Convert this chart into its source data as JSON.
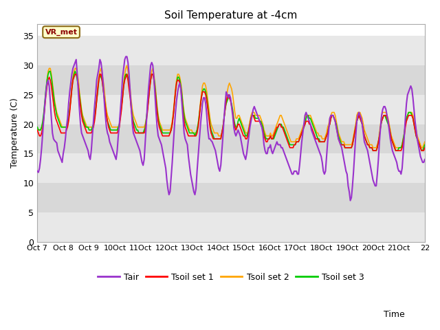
{
  "title": "Soil Temperature at -4cm",
  "xlabel": "Time",
  "ylabel": "Temperature (C)",
  "ylim": [
    0,
    37
  ],
  "yticks": [
    0,
    5,
    10,
    15,
    20,
    25,
    30,
    35
  ],
  "fig_bg_color": "#ffffff",
  "plot_bg_color": "#ffffff",
  "band_colors": [
    "#e8e8e8",
    "#d8d8d8"
  ],
  "grid_color": "#cccccc",
  "annotation_text": "VR_met",
  "annotation_bg": "#ffffcc",
  "annotation_border": "#8B6914",
  "legend_labels": [
    "Tair",
    "Tsoil set 1",
    "Tsoil set 2",
    "Tsoil set 3"
  ],
  "line_colors": [
    "#9932CC",
    "#ff0000",
    "#ffa500",
    "#00cc00"
  ],
  "xtick_labels": [
    "Oct 7",
    "Oct 8",
    "Oct 9",
    "Oct 10",
    "Oct 11",
    "Oct 12",
    "Oct 13",
    "Oct 14",
    "Oct 15",
    "Oct 16",
    "Oct 17",
    "Oct 18",
    "Oct 19",
    "Oct 20",
    "Oct 21",
    "Oct 22"
  ],
  "xtick_labels_display": [
    "Oct 7",
    "Oct 8",
    "Oct 9",
    "10Oct",
    "11Oct",
    "12Oct",
    "13Oct",
    "14Oct",
    "15Oct",
    "16Oct",
    "17Oct",
    "18Oct",
    "19Oct",
    "20Oct",
    "21Oct",
    "22"
  ],
  "n_days": 15,
  "points_per_day": 24,
  "tair": [
    12.0,
    11.8,
    12.5,
    14.0,
    16.0,
    18.5,
    21.0,
    23.5,
    25.5,
    27.0,
    27.5,
    26.5,
    24.0,
    21.0,
    18.5,
    17.5,
    17.2,
    17.0,
    16.8,
    15.5,
    15.0,
    14.5,
    14.0,
    13.5,
    15.0,
    16.0,
    17.5,
    19.5,
    21.0,
    23.5,
    25.5,
    27.0,
    28.5,
    29.5,
    30.0,
    30.5,
    31.0,
    28.5,
    25.5,
    22.5,
    20.0,
    18.5,
    18.0,
    17.5,
    17.0,
    16.5,
    16.0,
    15.5,
    14.5,
    14.0,
    15.5,
    18.0,
    20.5,
    23.0,
    25.0,
    27.5,
    28.5,
    29.5,
    31.0,
    30.5,
    29.0,
    27.0,
    24.0,
    21.5,
    19.5,
    18.5,
    18.0,
    17.0,
    16.5,
    16.0,
    15.5,
    15.0,
    14.5,
    14.0,
    15.5,
    18.0,
    20.0,
    22.5,
    25.0,
    28.0,
    29.5,
    31.0,
    31.5,
    31.5,
    30.5,
    28.5,
    25.5,
    23.0,
    20.0,
    18.5,
    18.0,
    17.5,
    17.0,
    16.5,
    16.0,
    15.5,
    14.5,
    13.5,
    13.0,
    14.0,
    17.0,
    20.0,
    23.5,
    26.0,
    28.0,
    30.0,
    30.5,
    30.0,
    28.0,
    25.0,
    22.0,
    19.5,
    18.0,
    17.5,
    17.0,
    16.5,
    15.5,
    14.5,
    13.5,
    12.5,
    10.5,
    9.0,
    8.0,
    8.5,
    11.0,
    13.5,
    16.5,
    19.5,
    22.0,
    24.0,
    25.5,
    26.5,
    27.0,
    26.0,
    23.5,
    21.0,
    18.5,
    17.5,
    17.0,
    16.5,
    14.5,
    13.0,
    11.5,
    10.5,
    9.5,
    8.5,
    8.0,
    9.0,
    12.0,
    14.5,
    17.0,
    19.5,
    21.5,
    23.5,
    24.5,
    24.5,
    23.5,
    21.5,
    19.0,
    17.5,
    17.5,
    17.2,
    17.0,
    16.5,
    16.0,
    15.5,
    14.5,
    13.5,
    12.5,
    12.0,
    13.0,
    15.5,
    18.0,
    21.0,
    23.5,
    25.5,
    25.0,
    24.5,
    25.0,
    24.5,
    23.0,
    21.5,
    19.5,
    18.5,
    18.0,
    18.5,
    19.0,
    18.5,
    18.0,
    17.0,
    16.0,
    15.0,
    14.5,
    14.0,
    15.0,
    16.5,
    18.0,
    19.5,
    20.5,
    21.5,
    22.5,
    23.0,
    22.5,
    22.0,
    21.5,
    21.0,
    20.5,
    20.0,
    19.5,
    18.5,
    16.5,
    15.5,
    15.0,
    15.0,
    16.0,
    16.0,
    16.5,
    15.5,
    15.0,
    15.5,
    16.0,
    16.5,
    17.0,
    16.5,
    16.5,
    16.5,
    16.0,
    16.0,
    15.5,
    15.0,
    14.5,
    14.0,
    13.5,
    13.0,
    12.5,
    12.0,
    11.5,
    11.5,
    12.0,
    12.0,
    12.0,
    11.5,
    11.5,
    13.0,
    15.0,
    17.0,
    18.5,
    20.0,
    21.5,
    22.0,
    21.5,
    21.0,
    20.5,
    20.0,
    19.0,
    18.5,
    18.0,
    17.5,
    17.0,
    16.5,
    16.0,
    15.5,
    15.0,
    14.5,
    13.5,
    12.0,
    11.5,
    12.0,
    14.5,
    17.0,
    19.0,
    21.0,
    21.5,
    21.5,
    21.5,
    21.0,
    20.5,
    19.5,
    18.5,
    17.5,
    17.0,
    16.5,
    16.0,
    15.0,
    14.0,
    13.0,
    12.0,
    11.5,
    9.5,
    8.5,
    7.0,
    7.5,
    9.5,
    12.0,
    15.0,
    18.0,
    20.5,
    21.5,
    22.0,
    21.5,
    21.0,
    20.0,
    18.5,
    17.0,
    16.5,
    16.0,
    15.5,
    14.5,
    13.5,
    12.5,
    11.5,
    10.5,
    10.0,
    9.5,
    9.5,
    11.5,
    14.0,
    17.0,
    19.5,
    21.5,
    22.5,
    23.0,
    23.0,
    22.5,
    21.5,
    20.5,
    19.0,
    17.5,
    16.5,
    15.5,
    15.0,
    14.5,
    14.0,
    13.5,
    12.5,
    12.0,
    12.0,
    11.5,
    12.5,
    15.0,
    18.0,
    21.0,
    23.5,
    25.0,
    25.5,
    26.0,
    26.5,
    26.0,
    24.5,
    22.5,
    20.5,
    19.0,
    17.5,
    16.5,
    15.5,
    14.5,
    14.0,
    13.5,
    13.5,
    14.0
  ],
  "tsoil1": [
    19.0,
    18.5,
    18.0,
    18.0,
    18.5,
    19.5,
    21.0,
    23.0,
    25.0,
    26.5,
    27.5,
    28.0,
    27.5,
    26.5,
    25.0,
    23.5,
    22.0,
    21.0,
    20.5,
    20.0,
    19.5,
    19.0,
    18.5,
    18.5,
    18.5,
    18.5,
    18.5,
    19.0,
    19.5,
    20.5,
    22.0,
    24.0,
    26.0,
    27.5,
    28.0,
    28.5,
    28.5,
    28.0,
    26.5,
    24.5,
    23.0,
    21.5,
    20.5,
    20.0,
    19.5,
    19.0,
    18.5,
    18.5,
    18.5,
    18.5,
    18.5,
    19.0,
    19.5,
    20.5,
    22.0,
    24.0,
    26.0,
    27.5,
    28.5,
    28.5,
    27.5,
    26.0,
    24.5,
    23.0,
    21.5,
    20.5,
    19.5,
    19.0,
    18.5,
    18.5,
    18.5,
    18.5,
    18.5,
    18.5,
    18.5,
    19.0,
    19.5,
    21.0,
    22.5,
    24.5,
    26.5,
    27.5,
    28.0,
    28.5,
    27.5,
    26.0,
    24.5,
    22.5,
    21.0,
    20.0,
    19.0,
    18.5,
    18.5,
    18.5,
    18.5,
    18.5,
    18.5,
    18.5,
    18.5,
    18.5,
    19.0,
    20.5,
    22.0,
    24.0,
    26.0,
    27.5,
    28.5,
    28.5,
    27.5,
    26.0,
    24.0,
    22.0,
    20.5,
    19.5,
    19.0,
    18.5,
    18.0,
    18.0,
    18.0,
    18.0,
    18.0,
    18.0,
    18.0,
    18.5,
    19.0,
    20.0,
    21.5,
    23.5,
    25.5,
    27.0,
    27.5,
    27.5,
    27.0,
    26.0,
    24.0,
    22.0,
    20.5,
    19.5,
    19.0,
    18.5,
    18.0,
    18.0,
    18.0,
    18.0,
    18.0,
    18.0,
    18.0,
    18.0,
    18.5,
    19.5,
    21.0,
    23.0,
    24.5,
    25.5,
    25.5,
    25.5,
    25.0,
    24.0,
    22.5,
    21.0,
    19.5,
    18.5,
    18.0,
    17.5,
    17.5,
    17.5,
    17.5,
    17.5,
    17.5,
    17.5,
    17.5,
    18.5,
    19.5,
    21.0,
    22.5,
    24.0,
    24.5,
    25.0,
    24.5,
    24.0,
    23.0,
    22.0,
    20.5,
    19.5,
    19.0,
    19.5,
    20.0,
    20.0,
    19.5,
    19.0,
    18.5,
    18.0,
    18.0,
    17.5,
    17.5,
    18.0,
    19.0,
    20.0,
    21.0,
    21.5,
    21.5,
    21.0,
    20.5,
    20.5,
    20.5,
    20.5,
    20.5,
    20.0,
    19.5,
    19.0,
    18.0,
    17.5,
    17.0,
    17.0,
    17.5,
    17.5,
    18.0,
    17.5,
    17.5,
    18.0,
    18.5,
    19.0,
    19.5,
    19.5,
    20.0,
    20.0,
    19.5,
    19.5,
    19.0,
    18.5,
    18.0,
    17.5,
    17.0,
    16.5,
    16.0,
    16.0,
    16.0,
    16.0,
    16.5,
    16.5,
    17.0,
    17.0,
    17.0,
    17.5,
    18.0,
    18.5,
    19.0,
    19.5,
    20.0,
    20.5,
    20.5,
    20.5,
    20.0,
    20.0,
    19.5,
    19.0,
    18.5,
    18.0,
    17.5,
    17.5,
    17.5,
    17.0,
    17.0,
    17.0,
    17.0,
    17.0,
    17.0,
    17.5,
    18.0,
    18.5,
    19.5,
    20.0,
    21.0,
    21.5,
    21.5,
    21.0,
    20.5,
    19.5,
    18.5,
    17.5,
    17.0,
    16.5,
    16.5,
    16.5,
    16.5,
    16.0,
    16.0,
    16.0,
    16.0,
    16.0,
    16.0,
    16.0,
    16.5,
    17.5,
    18.5,
    19.5,
    20.5,
    21.0,
    21.5,
    21.0,
    20.5,
    20.0,
    19.0,
    18.0,
    17.5,
    17.0,
    16.5,
    16.5,
    16.0,
    16.0,
    16.0,
    15.5,
    15.5,
    15.5,
    15.5,
    16.0,
    17.0,
    18.0,
    19.5,
    20.5,
    21.0,
    21.5,
    21.5,
    21.5,
    21.0,
    20.5,
    19.5,
    18.5,
    17.5,
    17.0,
    16.5,
    16.0,
    15.5,
    15.5,
    15.5,
    15.5,
    15.5,
    15.5,
    16.0,
    17.0,
    18.0,
    19.5,
    20.5,
    21.0,
    21.5,
    21.5,
    21.5,
    21.5,
    21.0,
    20.0,
    19.0,
    18.0,
    17.5,
    17.0,
    16.5,
    16.0,
    15.5,
    15.5,
    15.5,
    16.0
  ],
  "tsoil2": [
    19.5,
    19.0,
    19.0,
    19.0,
    19.5,
    20.0,
    21.5,
    23.5,
    25.5,
    27.5,
    29.0,
    29.5,
    29.5,
    28.5,
    27.0,
    25.5,
    24.0,
    23.0,
    22.0,
    21.5,
    21.0,
    20.5,
    20.0,
    19.5,
    19.5,
    19.5,
    19.5,
    19.5,
    20.0,
    21.0,
    22.5,
    24.5,
    26.5,
    28.0,
    29.0,
    29.5,
    29.5,
    28.5,
    27.5,
    25.5,
    24.0,
    22.5,
    21.5,
    21.0,
    20.5,
    20.0,
    19.5,
    19.5,
    19.5,
    19.5,
    19.5,
    19.5,
    20.0,
    21.0,
    22.5,
    24.5,
    26.5,
    28.0,
    29.0,
    29.5,
    28.5,
    27.5,
    26.0,
    24.0,
    22.5,
    21.5,
    21.0,
    20.5,
    20.0,
    19.5,
    19.5,
    19.5,
    19.5,
    19.5,
    19.5,
    19.5,
    20.0,
    21.5,
    23.0,
    25.0,
    27.0,
    28.5,
    29.5,
    30.0,
    29.0,
    27.5,
    26.0,
    24.0,
    22.5,
    21.5,
    21.0,
    20.5,
    20.0,
    19.5,
    19.5,
    19.5,
    19.5,
    19.5,
    19.5,
    19.5,
    20.0,
    21.0,
    22.5,
    24.5,
    26.5,
    28.0,
    29.0,
    29.5,
    28.5,
    27.0,
    25.0,
    23.0,
    21.5,
    20.5,
    20.0,
    19.5,
    19.0,
    19.0,
    19.0,
    19.0,
    19.0,
    19.0,
    19.0,
    19.0,
    19.5,
    20.5,
    22.0,
    24.0,
    26.0,
    27.5,
    28.5,
    28.5,
    28.0,
    27.0,
    25.5,
    23.5,
    22.0,
    21.0,
    20.5,
    20.0,
    19.5,
    19.0,
    19.0,
    19.0,
    18.5,
    18.5,
    18.5,
    18.5,
    19.0,
    20.0,
    21.5,
    23.5,
    25.0,
    26.5,
    27.0,
    27.0,
    26.5,
    25.5,
    24.0,
    22.5,
    21.0,
    20.0,
    19.5,
    19.0,
    18.5,
    18.5,
    18.5,
    18.5,
    18.0,
    18.0,
    18.0,
    18.5,
    19.5,
    21.0,
    22.5,
    24.0,
    25.5,
    26.5,
    27.0,
    26.5,
    26.0,
    25.0,
    23.5,
    22.0,
    21.0,
    21.0,
    21.5,
    21.5,
    21.0,
    20.5,
    20.0,
    19.5,
    19.0,
    18.5,
    18.5,
    18.5,
    19.5,
    20.5,
    21.5,
    22.0,
    22.0,
    22.0,
    21.5,
    21.5,
    21.5,
    21.5,
    21.5,
    21.0,
    20.5,
    20.0,
    19.0,
    18.5,
    18.0,
    18.0,
    18.0,
    18.0,
    18.5,
    18.0,
    18.0,
    18.5,
    19.0,
    19.5,
    20.0,
    20.5,
    21.0,
    21.5,
    21.5,
    21.0,
    20.5,
    20.0,
    19.5,
    19.0,
    18.5,
    18.0,
    17.5,
    17.0,
    17.0,
    17.0,
    17.0,
    17.0,
    17.5,
    17.5,
    17.5,
    18.0,
    18.5,
    19.0,
    19.5,
    20.0,
    20.5,
    21.5,
    21.5,
    21.5,
    21.5,
    21.5,
    21.0,
    20.5,
    20.0,
    19.5,
    19.0,
    18.5,
    18.5,
    18.0,
    18.0,
    18.0,
    17.5,
    17.5,
    17.5,
    18.0,
    18.5,
    19.5,
    20.0,
    21.0,
    21.5,
    22.0,
    22.0,
    22.0,
    21.5,
    20.5,
    19.5,
    18.5,
    18.0,
    17.5,
    17.0,
    17.0,
    17.0,
    16.5,
    16.5,
    16.5,
    16.5,
    16.5,
    16.5,
    16.5,
    17.0,
    18.0,
    19.0,
    20.0,
    21.5,
    22.0,
    22.0,
    22.0,
    21.5,
    21.0,
    20.0,
    19.0,
    18.5,
    18.0,
    17.5,
    17.0,
    16.5,
    16.5,
    16.5,
    16.0,
    16.0,
    16.0,
    16.0,
    16.5,
    17.0,
    18.5,
    20.0,
    21.5,
    22.0,
    22.0,
    22.0,
    22.0,
    21.5,
    21.0,
    20.0,
    19.0,
    18.0,
    17.5,
    17.0,
    16.5,
    16.0,
    16.0,
    16.0,
    16.0,
    16.0,
    16.0,
    16.5,
    17.5,
    18.5,
    20.0,
    21.0,
    21.5,
    22.0,
    22.0,
    22.0,
    22.0,
    21.5,
    21.0,
    20.0,
    19.0,
    18.0,
    17.5,
    17.0,
    16.5,
    16.0,
    16.0,
    16.5,
    17.0
  ],
  "tsoil3": [
    19.5,
    19.0,
    19.0,
    19.0,
    19.5,
    20.5,
    22.0,
    24.0,
    26.0,
    27.5,
    28.5,
    29.0,
    29.0,
    28.0,
    26.5,
    25.0,
    23.5,
    22.5,
    21.5,
    21.0,
    20.5,
    20.0,
    19.5,
    19.5,
    19.5,
    19.5,
    19.5,
    19.5,
    20.0,
    21.0,
    22.5,
    24.0,
    26.0,
    27.5,
    28.5,
    29.0,
    28.5,
    27.5,
    26.5,
    25.0,
    23.5,
    22.0,
    21.0,
    20.5,
    20.0,
    19.5,
    19.5,
    19.5,
    19.0,
    19.0,
    19.0,
    19.5,
    20.0,
    21.0,
    22.5,
    24.0,
    25.5,
    27.5,
    28.5,
    28.0,
    27.5,
    26.0,
    24.5,
    23.0,
    21.5,
    20.5,
    20.0,
    19.5,
    19.0,
    19.0,
    19.0,
    19.0,
    19.0,
    19.0,
    19.0,
    19.5,
    20.0,
    21.5,
    23.0,
    24.5,
    26.5,
    28.0,
    28.5,
    28.5,
    28.0,
    26.5,
    25.0,
    23.0,
    21.5,
    20.5,
    20.0,
    19.5,
    19.0,
    19.0,
    18.5,
    18.5,
    18.5,
    18.5,
    18.5,
    19.0,
    19.5,
    21.0,
    22.5,
    24.0,
    26.0,
    27.5,
    28.5,
    28.5,
    28.0,
    26.5,
    24.5,
    22.5,
    21.0,
    20.0,
    19.5,
    19.0,
    18.5,
    18.5,
    18.5,
    18.5,
    18.5,
    18.5,
    18.5,
    18.5,
    19.0,
    20.0,
    21.5,
    23.5,
    25.5,
    27.0,
    28.0,
    28.0,
    27.5,
    26.5,
    25.0,
    23.0,
    21.5,
    20.5,
    20.0,
    19.5,
    19.0,
    18.5,
    18.5,
    18.5,
    18.5,
    18.5,
    18.0,
    18.5,
    19.0,
    20.0,
    21.5,
    23.0,
    24.5,
    25.5,
    26.0,
    26.0,
    25.5,
    24.5,
    23.0,
    21.5,
    20.0,
    19.0,
    18.5,
    18.0,
    17.5,
    17.5,
    17.5,
    17.5,
    17.5,
    17.5,
    17.5,
    18.5,
    19.5,
    21.0,
    22.5,
    23.5,
    24.0,
    24.5,
    24.5,
    24.0,
    23.5,
    22.5,
    21.0,
    20.0,
    19.5,
    19.5,
    20.5,
    21.0,
    20.5,
    20.0,
    19.5,
    19.0,
    18.5,
    18.0,
    18.0,
    18.5,
    19.0,
    20.0,
    21.0,
    21.5,
    21.5,
    21.5,
    21.0,
    21.0,
    21.0,
    21.0,
    20.5,
    20.5,
    20.0,
    19.5,
    18.5,
    18.0,
    17.5,
    17.5,
    17.5,
    17.5,
    18.0,
    17.5,
    17.5,
    17.5,
    18.0,
    18.5,
    19.0,
    19.5,
    20.0,
    20.0,
    20.0,
    19.5,
    19.5,
    19.0,
    18.5,
    18.0,
    17.5,
    17.0,
    16.5,
    16.5,
    16.5,
    16.5,
    16.5,
    16.5,
    17.0,
    17.0,
    17.0,
    17.5,
    18.0,
    18.5,
    19.0,
    19.5,
    20.0,
    21.0,
    21.5,
    21.5,
    21.0,
    21.0,
    20.5,
    20.0,
    19.5,
    19.0,
    18.5,
    18.0,
    17.5,
    17.5,
    17.0,
    17.0,
    17.0,
    17.0,
    17.0,
    17.5,
    18.0,
    18.5,
    19.5,
    20.0,
    21.0,
    21.5,
    21.5,
    21.0,
    20.5,
    20.0,
    19.0,
    18.0,
    17.5,
    17.0,
    16.5,
    16.5,
    16.5,
    16.0,
    16.0,
    16.0,
    16.0,
    16.0,
    16.0,
    16.0,
    16.5,
    17.5,
    18.5,
    19.5,
    20.5,
    21.0,
    21.5,
    21.0,
    20.5,
    20.0,
    19.0,
    18.0,
    17.5,
    17.0,
    16.5,
    16.5,
    16.0,
    16.0,
    16.0,
    15.5,
    15.5,
    15.5,
    15.5,
    16.0,
    17.0,
    18.0,
    19.5,
    20.5,
    21.0,
    21.5,
    21.5,
    21.0,
    20.5,
    20.0,
    19.5,
    18.5,
    17.5,
    17.0,
    16.5,
    16.0,
    15.5,
    15.5,
    15.5,
    16.0,
    16.0,
    16.0,
    16.5,
    17.5,
    18.5,
    20.0,
    21.0,
    21.5,
    22.0,
    22.0,
    22.0,
    21.5,
    21.0,
    20.0,
    19.0,
    18.0,
    17.5,
    17.0,
    16.5,
    16.0,
    15.5,
    15.5,
    16.0,
    16.5
  ]
}
